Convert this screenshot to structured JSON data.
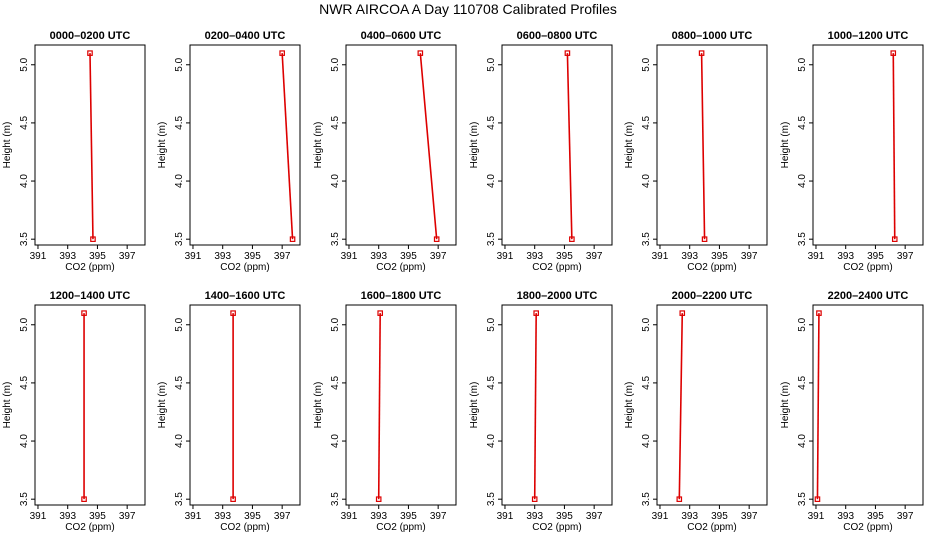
{
  "title": "NWR AIRCOA A  Day 110708  Calibrated Profiles",
  "colors": {
    "profile": "#dd0000",
    "axis": "#000000"
  },
  "chart_data": [
    {
      "type": "line",
      "title": "0000–0200 UTC",
      "xlabel": "CO2 (ppm)",
      "ylabel": "Height (m)",
      "xlim": [
        390.8,
        398.2
      ],
      "ylim": [
        3.45,
        5.17
      ],
      "xticks": [
        391,
        393,
        395,
        397
      ],
      "yticks": [
        3.5,
        4.0,
        4.5,
        5.0
      ],
      "series": [
        {
          "x": [
            394.5,
            394.7
          ],
          "y": [
            5.1,
            3.5
          ]
        }
      ]
    },
    {
      "type": "line",
      "title": "0200–0400 UTC",
      "xlabel": "CO2 (ppm)",
      "ylabel": "Height (m)",
      "xlim": [
        390.8,
        398.2
      ],
      "ylim": [
        3.45,
        5.17
      ],
      "xticks": [
        391,
        393,
        395,
        397
      ],
      "yticks": [
        3.5,
        4.0,
        4.5,
        5.0
      ],
      "series": [
        {
          "x": [
            397.0,
            397.7
          ],
          "y": [
            5.1,
            3.5
          ]
        }
      ]
    },
    {
      "type": "line",
      "title": "0400–0600 UTC",
      "xlabel": "CO2 (ppm)",
      "ylabel": "Height (m)",
      "xlim": [
        390.8,
        398.2
      ],
      "ylim": [
        3.45,
        5.17
      ],
      "xticks": [
        391,
        393,
        395,
        397
      ],
      "yticks": [
        3.5,
        4.0,
        4.5,
        5.0
      ],
      "series": [
        {
          "x": [
            395.8,
            396.9
          ],
          "y": [
            5.1,
            3.5
          ]
        }
      ]
    },
    {
      "type": "line",
      "title": "0600–0800 UTC",
      "xlabel": "CO2 (ppm)",
      "ylabel": "Height (m)",
      "xlim": [
        390.8,
        398.2
      ],
      "ylim": [
        3.45,
        5.17
      ],
      "xticks": [
        391,
        393,
        395,
        397
      ],
      "yticks": [
        3.5,
        4.0,
        4.5,
        5.0
      ],
      "series": [
        {
          "x": [
            395.2,
            395.5
          ],
          "y": [
            5.1,
            3.5
          ]
        }
      ]
    },
    {
      "type": "line",
      "title": "0800–1000 UTC",
      "xlabel": "CO2 (ppm)",
      "ylabel": "Height (m)",
      "xlim": [
        390.8,
        398.2
      ],
      "ylim": [
        3.45,
        5.17
      ],
      "xticks": [
        391,
        393,
        395,
        397
      ],
      "yticks": [
        3.5,
        4.0,
        4.5,
        5.0
      ],
      "series": [
        {
          "x": [
            393.8,
            394.0
          ],
          "y": [
            5.1,
            3.5
          ]
        }
      ]
    },
    {
      "type": "line",
      "title": "1000–1200 UTC",
      "xlabel": "CO2 (ppm)",
      "ylabel": "Height (m)",
      "xlim": [
        390.8,
        398.2
      ],
      "ylim": [
        3.45,
        5.17
      ],
      "xticks": [
        391,
        393,
        395,
        397
      ],
      "yticks": [
        3.5,
        4.0,
        4.5,
        5.0
      ],
      "series": [
        {
          "x": [
            396.2,
            396.3
          ],
          "y": [
            5.1,
            3.5
          ]
        }
      ]
    },
    {
      "type": "line",
      "title": "1200–1400 UTC",
      "xlabel": "CO2 (ppm)",
      "ylabel": "Height (m)",
      "xlim": [
        390.8,
        398.2
      ],
      "ylim": [
        3.45,
        5.17
      ],
      "xticks": [
        391,
        393,
        395,
        397
      ],
      "yticks": [
        3.5,
        4.0,
        4.5,
        5.0
      ],
      "series": [
        {
          "x": [
            394.1,
            394.1
          ],
          "y": [
            5.1,
            3.5
          ]
        }
      ]
    },
    {
      "type": "line",
      "title": "1400–1600 UTC",
      "xlabel": "CO2 (ppm)",
      "ylabel": "Height (m)",
      "xlim": [
        390.8,
        398.2
      ],
      "ylim": [
        3.45,
        5.17
      ],
      "xticks": [
        391,
        393,
        395,
        397
      ],
      "yticks": [
        3.5,
        4.0,
        4.5,
        5.0
      ],
      "series": [
        {
          "x": [
            393.7,
            393.7
          ],
          "y": [
            5.1,
            3.5
          ]
        }
      ]
    },
    {
      "type": "line",
      "title": "1600–1800 UTC",
      "xlabel": "CO2 (ppm)",
      "ylabel": "Height (m)",
      "xlim": [
        390.8,
        398.2
      ],
      "ylim": [
        3.45,
        5.17
      ],
      "xticks": [
        391,
        393,
        395,
        397
      ],
      "yticks": [
        3.5,
        4.0,
        4.5,
        5.0
      ],
      "series": [
        {
          "x": [
            393.1,
            393.0
          ],
          "y": [
            5.1,
            3.5
          ]
        }
      ]
    },
    {
      "type": "line",
      "title": "1800–2000 UTC",
      "xlabel": "CO2 (ppm)",
      "ylabel": "Height (m)",
      "xlim": [
        390.8,
        398.2
      ],
      "ylim": [
        3.45,
        5.17
      ],
      "xticks": [
        391,
        393,
        395,
        397
      ],
      "yticks": [
        3.5,
        4.0,
        4.5,
        5.0
      ],
      "series": [
        {
          "x": [
            393.1,
            393.0
          ],
          "y": [
            5.1,
            3.5
          ]
        }
      ]
    },
    {
      "type": "line",
      "title": "2000–2200 UTC",
      "xlabel": "CO2 (ppm)",
      "ylabel": "Height (m)",
      "xlim": [
        390.8,
        398.2
      ],
      "ylim": [
        3.45,
        5.17
      ],
      "xticks": [
        391,
        393,
        395,
        397
      ],
      "yticks": [
        3.5,
        4.0,
        4.5,
        5.0
      ],
      "series": [
        {
          "x": [
            392.5,
            392.3
          ],
          "y": [
            5.1,
            3.5
          ]
        }
      ]
    },
    {
      "type": "line",
      "title": "2200–2400 UTC",
      "xlabel": "CO2 (ppm)",
      "ylabel": "Height (m)",
      "xlim": [
        390.8,
        398.2
      ],
      "ylim": [
        3.45,
        5.17
      ],
      "xticks": [
        391,
        393,
        395,
        397
      ],
      "yticks": [
        3.5,
        4.0,
        4.5,
        5.0
      ],
      "series": [
        {
          "x": [
            391.2,
            391.1
          ],
          "y": [
            5.1,
            3.5
          ]
        }
      ]
    }
  ]
}
